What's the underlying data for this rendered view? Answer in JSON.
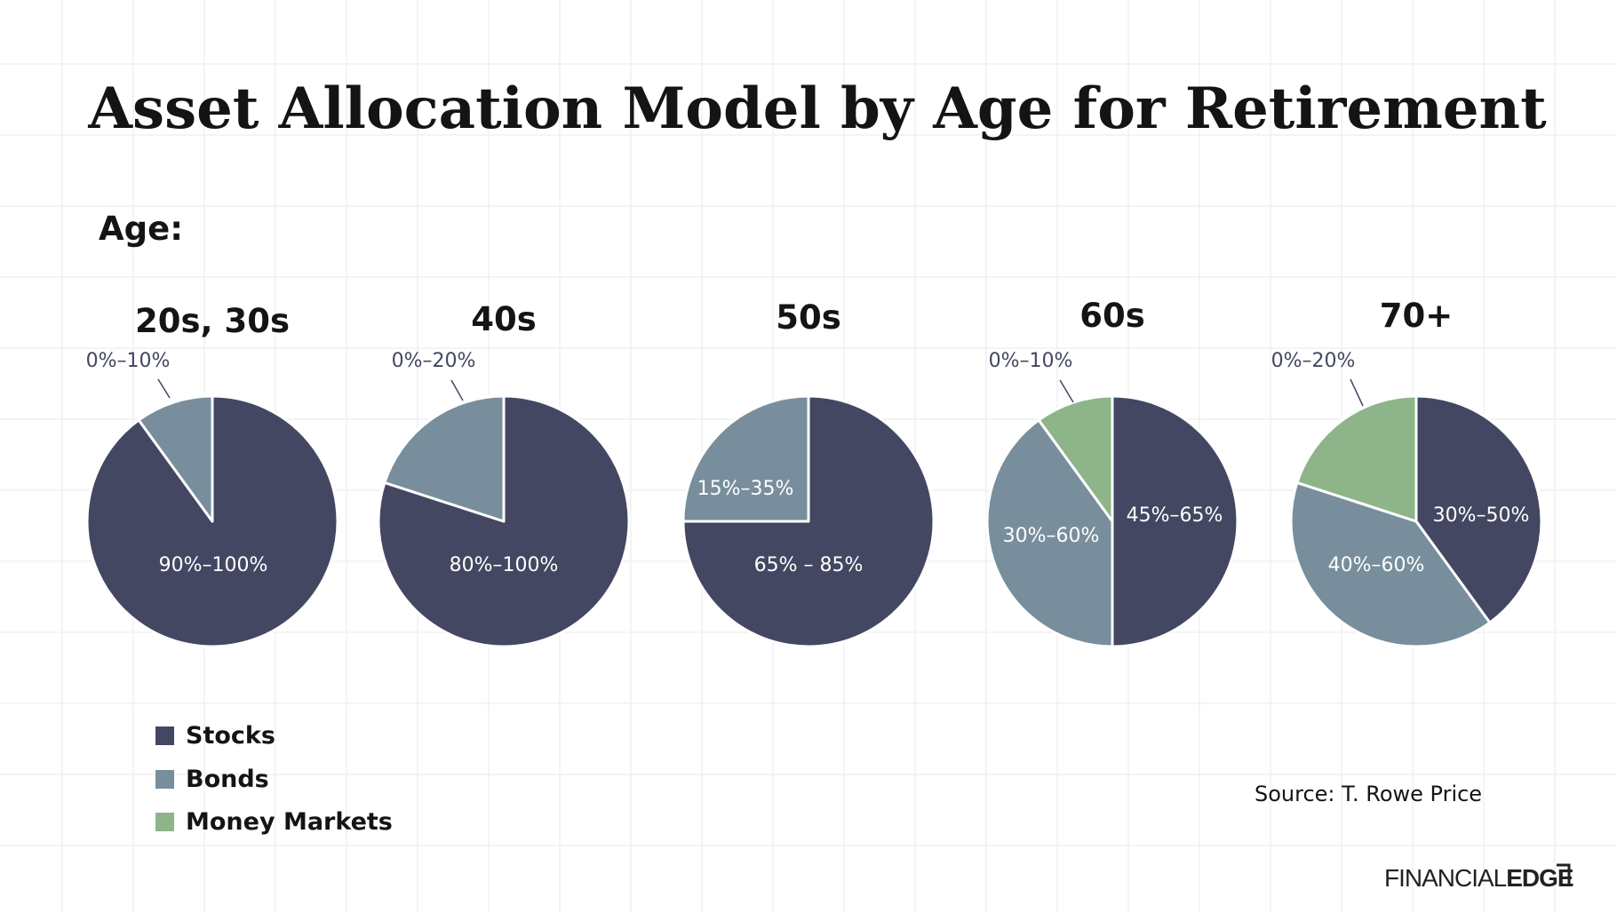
{
  "chart_data": {
    "type": "pie",
    "title": "Asset Allocation Model by Age for Retirement",
    "subtitle": "Age:",
    "series_colors": {
      "Stocks": "#444761",
      "Bonds": "#788e9c",
      "Money Markets": "#8db589"
    },
    "legend": {
      "position": "bottom-left",
      "items": [
        {
          "name": "Stocks",
          "color": "#444761"
        },
        {
          "name": "Bonds",
          "color": "#788e9c"
        },
        {
          "name": "Money Markets",
          "color": "#8db589"
        }
      ]
    },
    "source": "Source: T. Rowe Price",
    "pies": [
      {
        "category": "20s, 30s",
        "slices": [
          {
            "series": "Stocks",
            "value": 90,
            "label": "90%–100%",
            "label_placement": "inside"
          },
          {
            "series": "Bonds",
            "value": 10,
            "label": "0%–10%",
            "label_placement": "outside"
          }
        ]
      },
      {
        "category": "40s",
        "slices": [
          {
            "series": "Stocks",
            "value": 80,
            "label": "80%–100%",
            "label_placement": "inside"
          },
          {
            "series": "Bonds",
            "value": 20,
            "label": "0%–20%",
            "label_placement": "outside"
          }
        ]
      },
      {
        "category": "50s",
        "slices": [
          {
            "series": "Stocks",
            "value": 75,
            "label": "65% – 85%",
            "label_placement": "inside"
          },
          {
            "series": "Bonds",
            "value": 25,
            "label": "15%–35%",
            "label_placement": "inside"
          }
        ]
      },
      {
        "category": "60s",
        "slices": [
          {
            "series": "Stocks",
            "value": 50,
            "label": "45%–65%",
            "label_placement": "inside"
          },
          {
            "series": "Bonds",
            "value": 40,
            "label": "30%–60%",
            "label_placement": "inside"
          },
          {
            "series": "Money Markets",
            "value": 10,
            "label": "0%–10%",
            "label_placement": "outside"
          }
        ]
      },
      {
        "category": "70+",
        "slices": [
          {
            "series": "Stocks",
            "value": 40,
            "label": "30%–50%",
            "label_placement": "inside"
          },
          {
            "series": "Bonds",
            "value": 40,
            "label": "40%–60%",
            "label_placement": "inside"
          },
          {
            "series": "Money Markets",
            "value": 20,
            "label": "0%–20%",
            "label_placement": "outside"
          }
        ]
      }
    ]
  },
  "brand": {
    "word_light": "FINANCIAL",
    "word_bold": "EDGE"
  }
}
